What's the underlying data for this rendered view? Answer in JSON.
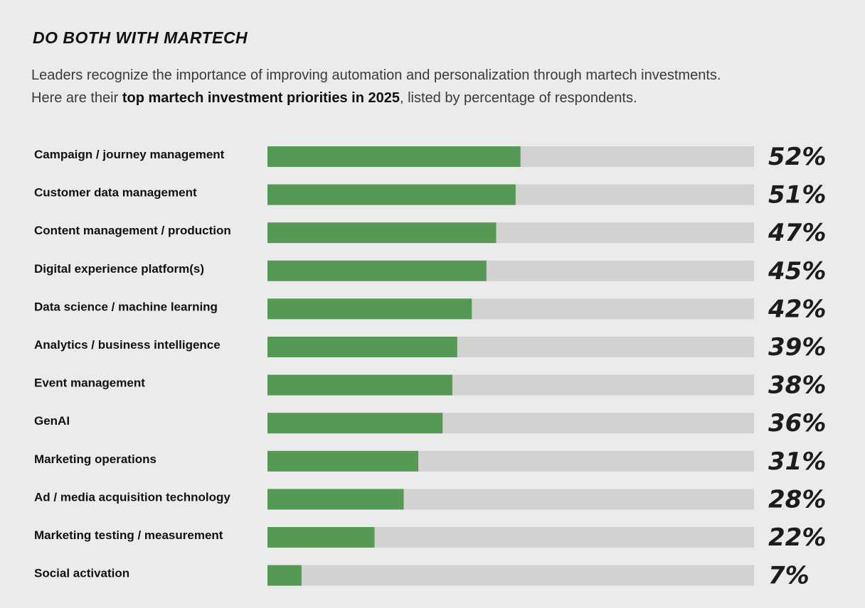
{
  "header": {
    "title": "DO BOTH WITH MARTECH",
    "subtitle_line1": "Leaders recognize the importance of improving automation and personalization through martech investments.",
    "subtitle_pre": "Here are their ",
    "subtitle_bold": "top martech investment priorities in 2025",
    "subtitle_post": ", listed by percentage of respondents."
  },
  "colors": {
    "bar_fill": "#559955",
    "bar_track": "#d2d2d1",
    "background": "#ebebeb"
  },
  "chart_data": {
    "type": "bar",
    "orientation": "horizontal",
    "xlim": [
      0,
      100
    ],
    "categories": [
      "Campaign / journey management",
      "Customer data management",
      "Content management / production",
      "Digital experience platform(s)",
      "Data science / machine learning",
      "Analytics / business intelligence",
      "Event management",
      "GenAI",
      "Marketing operations",
      "Ad / media acquisition technology",
      "Marketing testing / measurement",
      "Social activation"
    ],
    "values": [
      52,
      51,
      47,
      45,
      42,
      39,
      38,
      36,
      31,
      28,
      22,
      7
    ],
    "value_labels": [
      "52%",
      "51%",
      "47%",
      "45%",
      "42%",
      "39%",
      "38%",
      "36%",
      "31%",
      "28%",
      "22%",
      "7%"
    ]
  }
}
